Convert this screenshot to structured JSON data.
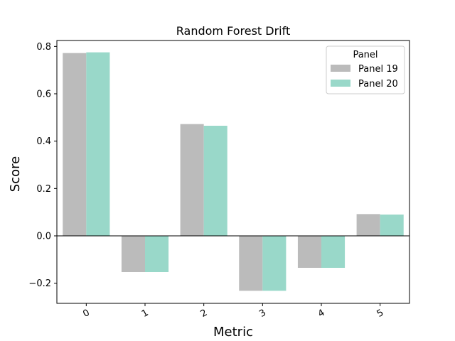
{
  "chart_data": {
    "type": "bar",
    "title": "Random Forest Drift",
    "xlabel": "Metric",
    "ylabel": "Score",
    "categories": [
      "0",
      "1",
      "2",
      "3",
      "4",
      "5"
    ],
    "series": [
      {
        "name": "Panel 19",
        "color": "#bbbbbb",
        "values": [
          0.772,
          -0.153,
          0.472,
          -0.232,
          -0.135,
          0.092
        ]
      },
      {
        "name": "Panel 20",
        "color": "#99d8c9",
        "values": [
          0.775,
          -0.153,
          0.465,
          -0.232,
          -0.135,
          0.09
        ]
      }
    ],
    "ylim": [
      -0.285,
      0.825
    ],
    "yticks": [
      -0.2,
      0.0,
      0.2,
      0.4,
      0.6,
      0.8
    ],
    "ytick_labels": [
      "−0.2",
      "0.0",
      "0.2",
      "0.4",
      "0.6",
      "0.8"
    ],
    "legend": {
      "title": "Panel",
      "position": "top-right"
    },
    "grid": false,
    "zero_line": true
  }
}
